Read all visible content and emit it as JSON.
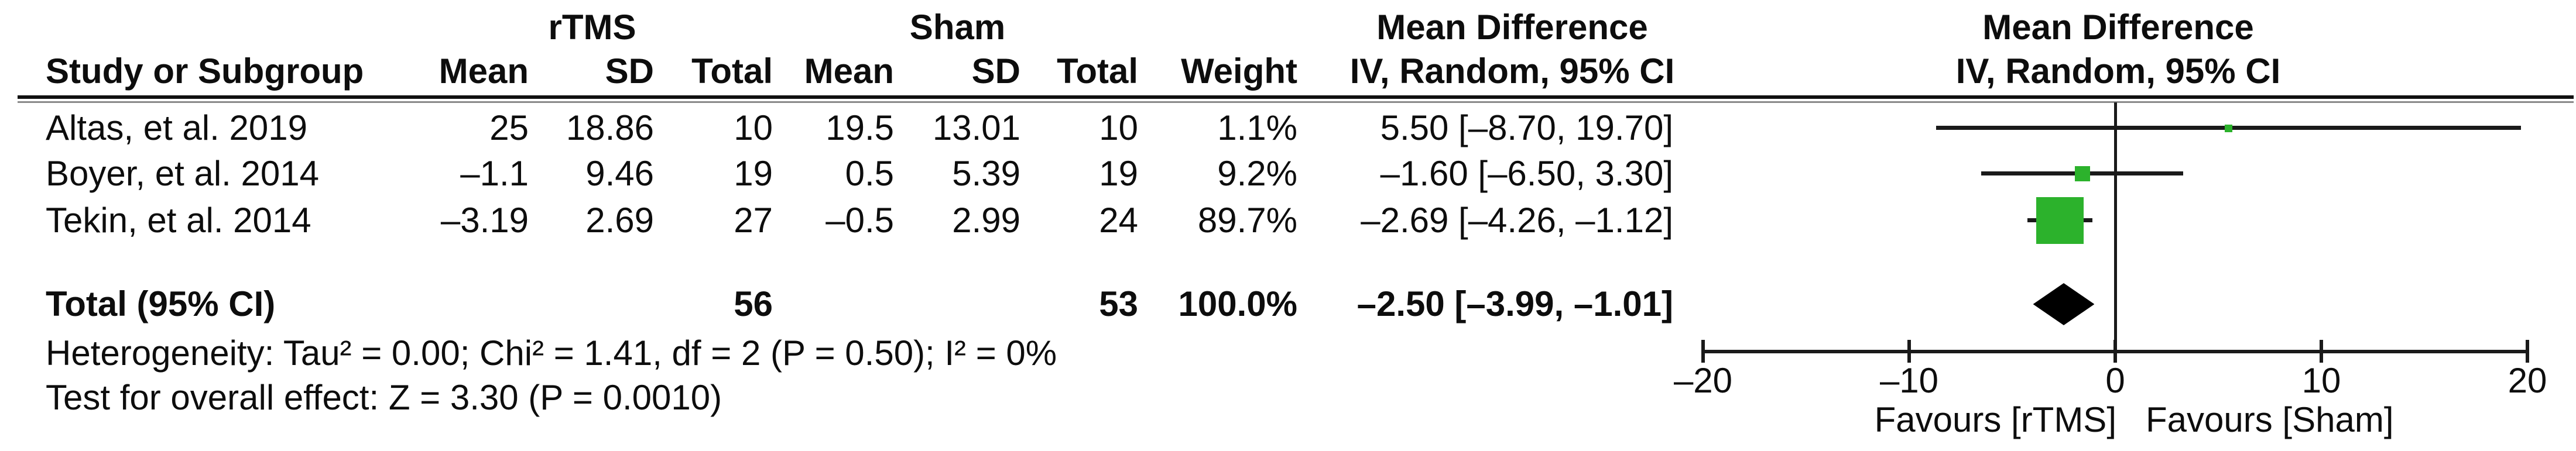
{
  "header": {
    "group_rtms": "rTMS",
    "group_sham": "Sham",
    "group_md_left": "Mean Difference",
    "group_md_right": "Mean Difference",
    "col_study": "Study or Subgroup",
    "col_mean_1": "Mean",
    "col_sd_1": "SD",
    "col_total_1": "Total",
    "col_mean_2": "Mean",
    "col_sd_2": "SD",
    "col_total_2": "Total",
    "col_weight": "Weight",
    "col_ci_left": "IV, Random, 95% CI",
    "col_ci_right": "IV, Random, 95% CI"
  },
  "studies": [
    {
      "name": "Altas, et al. 2019",
      "mean": "25",
      "sd": "18.86",
      "total": "10",
      "sham_mean": "19.5",
      "sham_sd": "13.01",
      "sham_total": "10",
      "weight": "1.1%",
      "ci": "5.50 [–8.70, 19.70]"
    },
    {
      "name": "Boyer, et al. 2014",
      "mean": "–1.1",
      "sd": "9.46",
      "total": "19",
      "sham_mean": "0.5",
      "sham_sd": "5.39",
      "sham_total": "19",
      "weight": "9.2%",
      "ci": "–1.60 [–6.50, 3.30]"
    },
    {
      "name": "Tekin, et al. 2014",
      "mean": "–3.19",
      "sd": "2.69",
      "total": "27",
      "sham_mean": "–0.5",
      "sham_sd": "2.99",
      "sham_total": "24",
      "weight": "89.7%",
      "ci": "–2.69 [–4.26, –1.12]"
    }
  ],
  "total_row": {
    "label": "Total (95% CI)",
    "total": "56",
    "sham_total": "53",
    "weight": "100.0%",
    "ci": "–2.50 [–3.99, –1.01]"
  },
  "footer": {
    "heterogeneity": "Heterogeneity: Tau² = 0.00; Chi² = 1.41, df = 2 (P = 0.50); I² = 0%",
    "overall_effect": "Test for overall effect: Z = 3.30 (P = 0.0010)"
  },
  "chart_data": {
    "type": "scatter",
    "subtype": "forest-plot",
    "title": "Mean Difference",
    "effect_measure": "IV, Random, 95% CI",
    "x_axis": {
      "min": -20,
      "max": 20,
      "ticks": [
        {
          "v": -20,
          "label": "–20"
        },
        {
          "v": -10,
          "label": "–10"
        },
        {
          "v": 0,
          "label": "0"
        },
        {
          "v": 10,
          "label": "10"
        },
        {
          "v": 20,
          "label": "20"
        }
      ],
      "label_left": "Favours [rTMS]",
      "label_right": "Favours [Sham]"
    },
    "studies": [
      {
        "name": "Altas, et al. 2019",
        "md": 5.5,
        "ci_low": -8.7,
        "ci_high": 19.7,
        "weight_pct": 1.1
      },
      {
        "name": "Boyer, et al. 2014",
        "md": -1.6,
        "ci_low": -6.5,
        "ci_high": 3.3,
        "weight_pct": 9.2
      },
      {
        "name": "Tekin, et al. 2014",
        "md": -2.69,
        "ci_low": -4.26,
        "ci_high": -1.12,
        "weight_pct": 89.7
      }
    ],
    "total": {
      "name": "Total (95% CI)",
      "md": -2.5,
      "ci_low": -3.99,
      "ci_high": -1.01,
      "weight_pct": 100.0
    },
    "marker_color": "#2CB22C",
    "diamond_color": "#000000",
    "line_color": "#1a1a1a"
  }
}
